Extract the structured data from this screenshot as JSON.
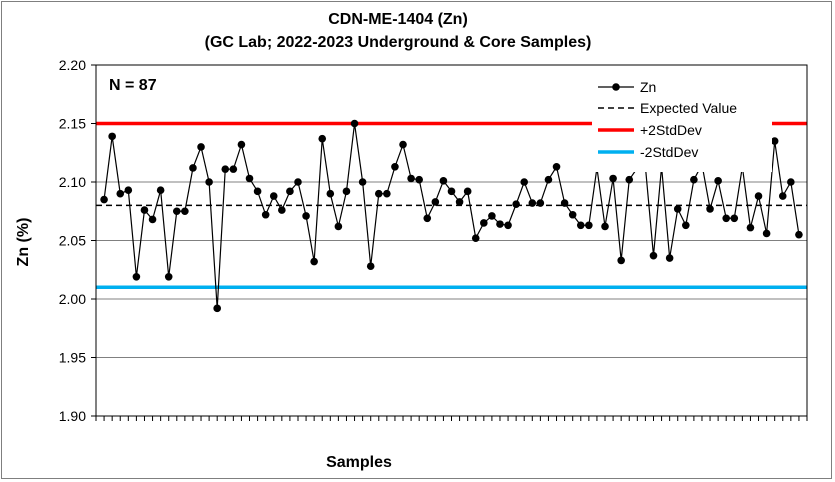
{
  "chart_data": {
    "type": "line",
    "title": "CDN-ME-1404 (Zn)",
    "subtitle": "(GC Lab; 2022-2023 Underground & Core Samples)",
    "xlabel": "Samples",
    "ylabel": "Zn (%)",
    "ylim": [
      1.9,
      2.2
    ],
    "yticks": [
      "1.90",
      "1.95",
      "2.00",
      "2.05",
      "2.10",
      "2.15",
      "2.20"
    ],
    "grid": true,
    "legend_position": "top-right",
    "annotation": "N = 87",
    "series": [
      {
        "name": "Zn",
        "color": "#000000",
        "values": [
          2.085,
          2.139,
          2.09,
          2.093,
          2.019,
          2.076,
          2.068,
          2.093,
          2.019,
          2.075,
          2.075,
          2.112,
          2.13,
          2.1,
          1.992,
          2.111,
          2.111,
          2.132,
          2.103,
          2.092,
          2.072,
          2.088,
          2.076,
          2.092,
          2.1,
          2.071,
          2.032,
          2.137,
          2.09,
          2.062,
          2.092,
          2.15,
          2.1,
          2.028,
          2.09,
          2.09,
          2.113,
          2.132,
          2.103,
          2.102,
          2.069,
          2.083,
          2.101,
          2.092,
          2.083,
          2.092,
          2.052,
          2.065,
          2.071,
          2.064,
          2.063,
          2.081,
          2.1,
          2.082,
          2.082,
          2.102,
          2.113,
          2.082,
          2.072,
          2.063,
          2.063,
          2.112,
          2.062,
          2.103,
          2.033,
          2.102,
          2.112,
          2.113,
          2.037,
          2.113,
          2.035,
          2.077,
          2.063,
          2.102,
          2.115,
          2.077,
          2.101,
          2.069,
          2.069,
          2.113,
          2.061,
          2.088,
          2.056,
          2.135,
          2.088,
          2.1,
          2.055
        ]
      },
      {
        "name": "Expected Value",
        "color": "#000000",
        "value": 2.08
      },
      {
        "name": "+2StdDev",
        "color": "#ff0000",
        "value": 2.15
      },
      {
        "name": "-2StdDev",
        "color": "#00b0f0",
        "value": 2.01
      }
    ]
  }
}
